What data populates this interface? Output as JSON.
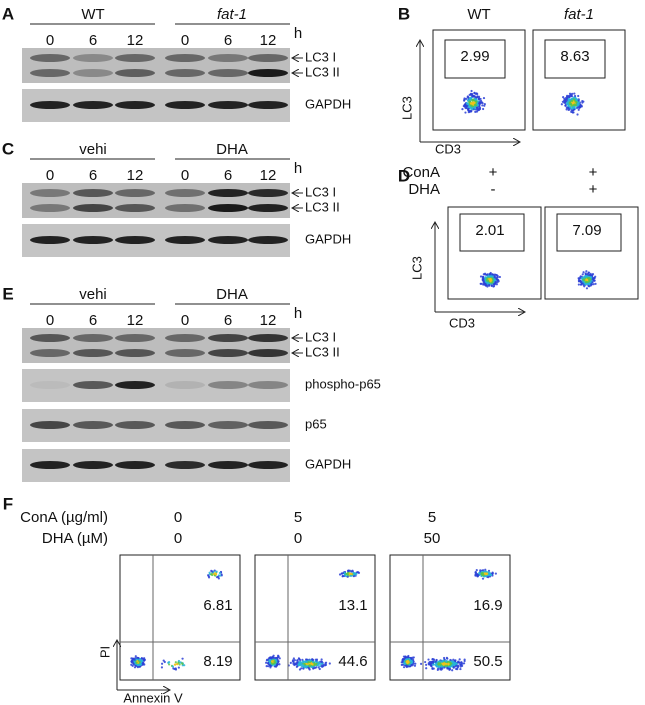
{
  "panel_a": {
    "label": "A",
    "groups": [
      "WT",
      "fat-1"
    ],
    "timepoints": [
      "0",
      "6",
      "12",
      "0",
      "6",
      "12"
    ],
    "unit": "h",
    "bands": [
      "LC3 I",
      "LC3 II"
    ],
    "blots": [
      "GAPDH"
    ]
  },
  "panel_b": {
    "label": "B",
    "plots": [
      {
        "title": "WT",
        "value": "2.99"
      },
      {
        "title": "fat-1",
        "value": "8.63"
      }
    ],
    "y_axis": "LC3",
    "x_axis": "CD3"
  },
  "panel_c": {
    "label": "C",
    "groups": [
      "vehi",
      "DHA"
    ],
    "timepoints": [
      "0",
      "6",
      "12",
      "0",
      "6",
      "12"
    ],
    "unit": "h",
    "bands": [
      "LC3 I",
      "LC3 II"
    ],
    "blots": [
      "GAPDH"
    ]
  },
  "panel_d": {
    "label": "D",
    "conditions": [
      {
        "name": "ConA",
        "values": [
          "+",
          "+"
        ]
      },
      {
        "name": "DHA",
        "values": [
          "-",
          "+"
        ]
      }
    ],
    "plots": [
      {
        "value": "2.01"
      },
      {
        "value": "7.09"
      }
    ],
    "y_axis": "LC3",
    "x_axis": "CD3"
  },
  "panel_e": {
    "label": "E",
    "groups": [
      "vehi",
      "DHA"
    ],
    "timepoints": [
      "0",
      "6",
      "12",
      "0",
      "6",
      "12"
    ],
    "unit": "h",
    "bands": [
      "LC3 I",
      "LC3 II"
    ],
    "blots": [
      "phospho-p65",
      "p65",
      "GAPDH"
    ]
  },
  "panel_f": {
    "label": "F",
    "conditions": [
      {
        "name": "ConA (µg/ml)",
        "values": [
          "0",
          "5",
          "5"
        ]
      },
      {
        "name": "DHA (µM)",
        "values": [
          "0",
          "0",
          "50"
        ]
      }
    ],
    "plots": [
      {
        "upper_right": "6.81",
        "lower_right": "8.19"
      },
      {
        "upper_right": "13.1",
        "lower_right": "44.6"
      },
      {
        "upper_right": "16.9",
        "lower_right": "50.5"
      }
    ],
    "y_axis": "PI",
    "x_axis": "Annexin V"
  }
}
